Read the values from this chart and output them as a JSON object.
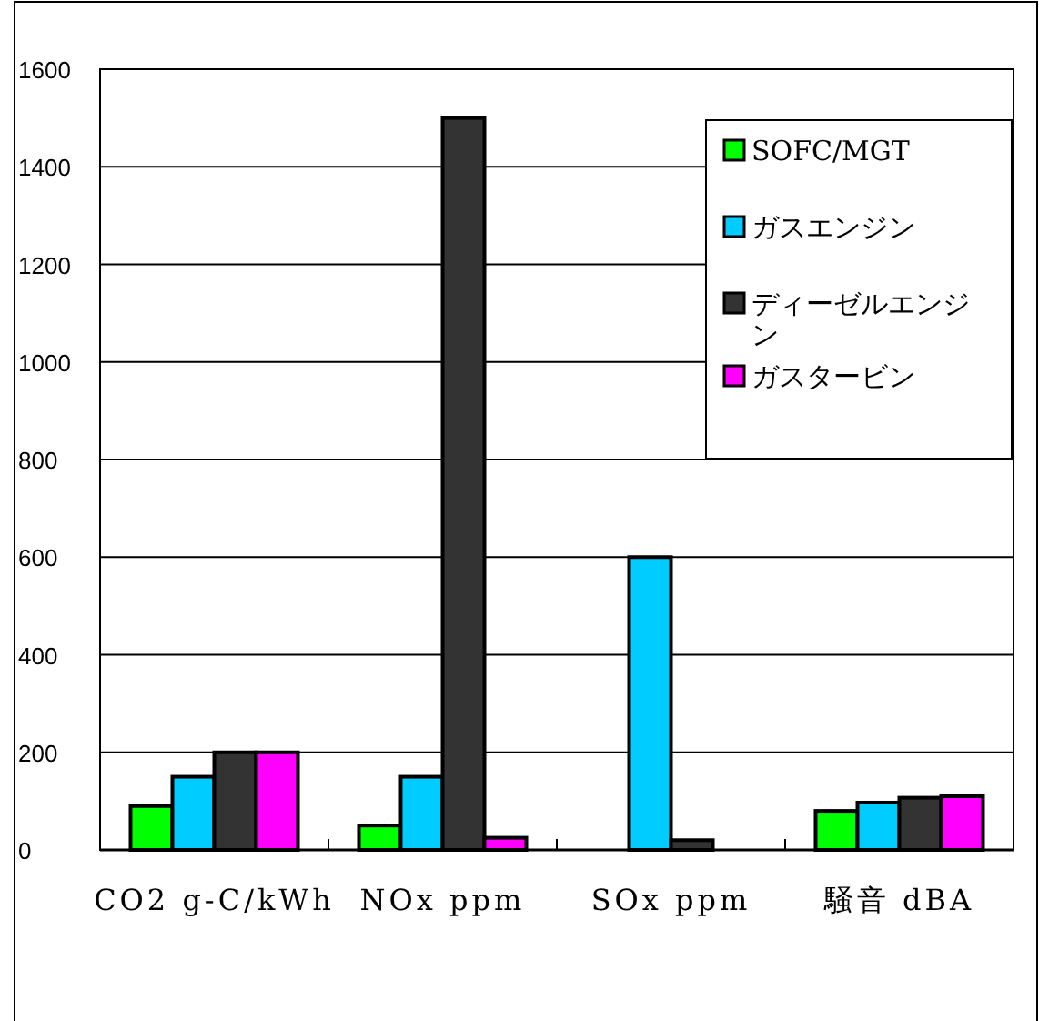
{
  "chart_data": {
    "type": "bar",
    "categories": [
      "CO2 g-C/kWh",
      "NOx ppm",
      "SOx ppm",
      "騒音 dBA"
    ],
    "series": [
      {
        "name": "SOFC/MGT",
        "color": "#00ff00",
        "values": [
          90,
          50,
          null,
          80
        ]
      },
      {
        "name": "ガスエンジン",
        "color": "#00ccff",
        "values": [
          150,
          150,
          600,
          97
        ]
      },
      {
        "name": "ディーゼルエンジン",
        "color": "#333333",
        "values": [
          200,
          1500,
          20,
          107
        ]
      },
      {
        "name": "ガスタービン",
        "color": "#ff00ff",
        "values": [
          200,
          25,
          null,
          110
        ]
      }
    ],
    "ylim": [
      0,
      1600
    ],
    "yticks": [
      0,
      200,
      400,
      600,
      800,
      1000,
      1200,
      1400,
      1600
    ],
    "grid": "y",
    "legend": "top right"
  }
}
